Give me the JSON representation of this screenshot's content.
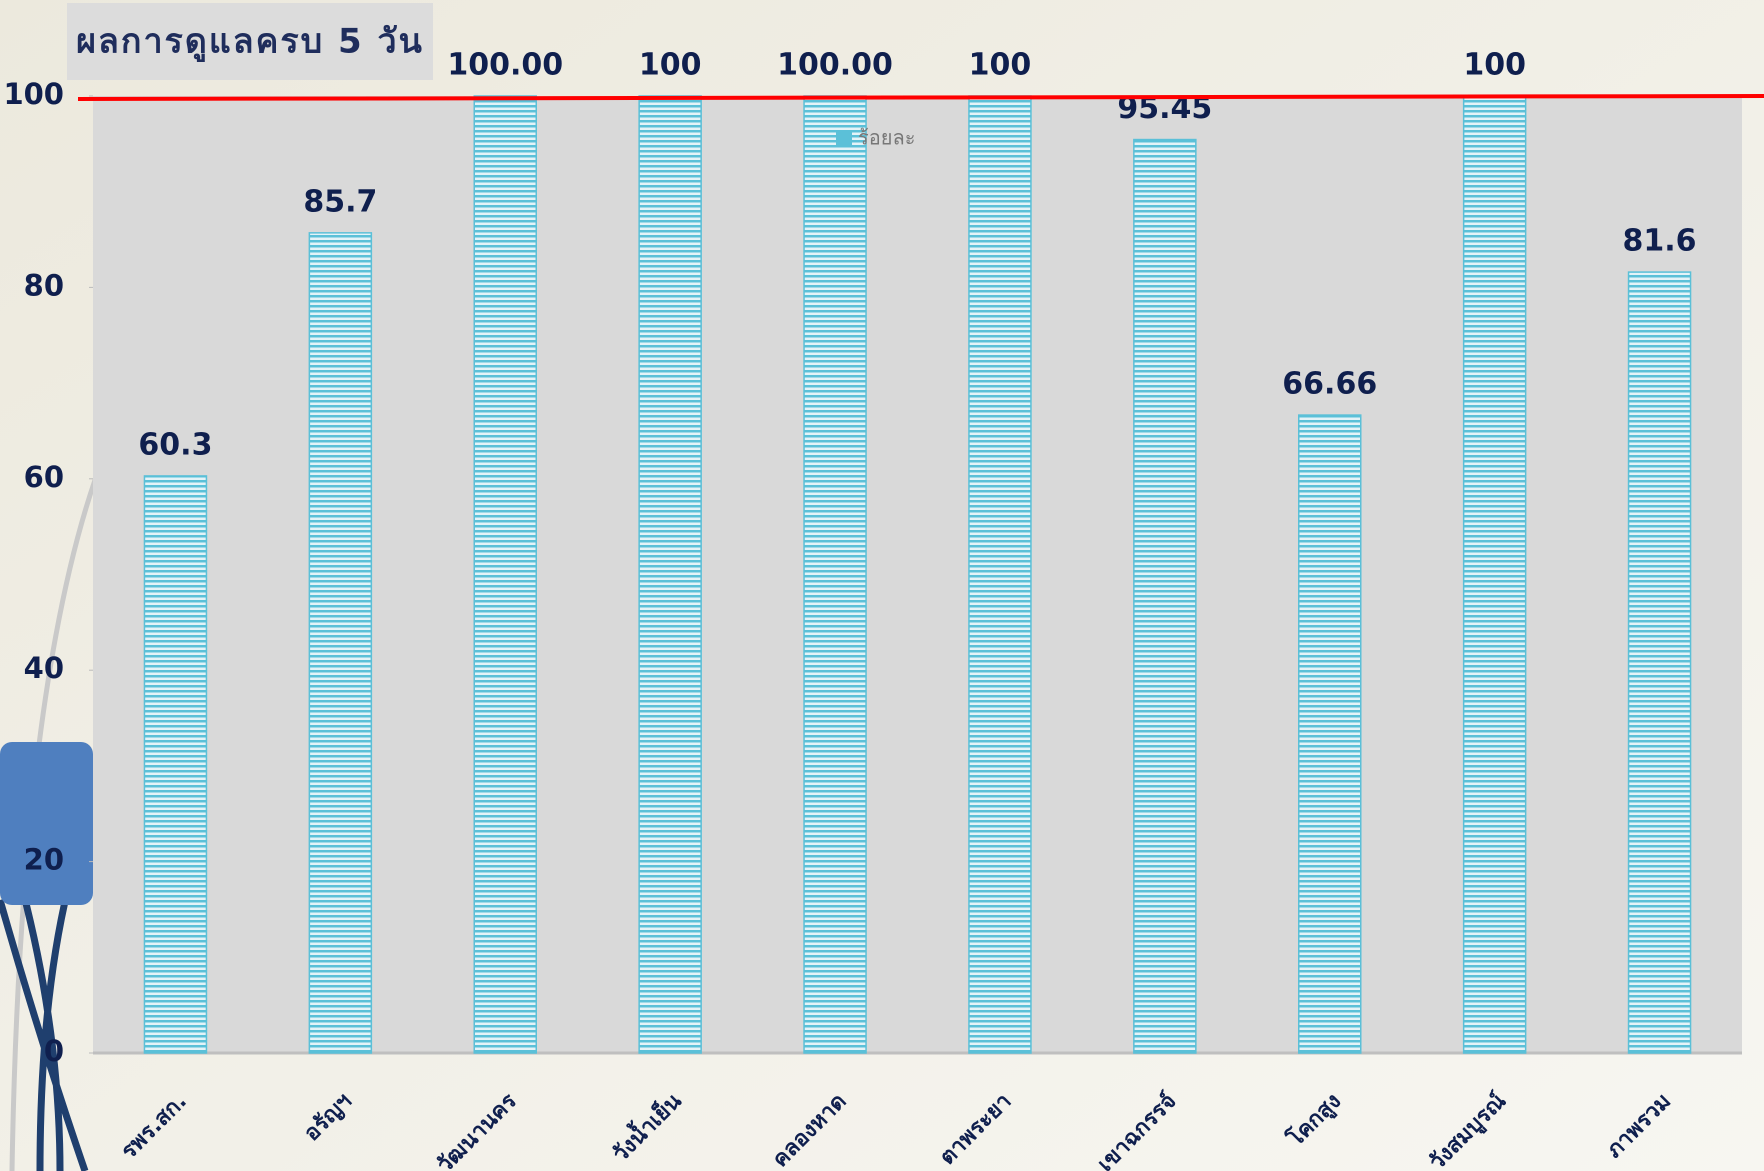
{
  "chart_data": {
    "type": "bar",
    "title": "ผลการดูแลครบ 5 วัน",
    "categories": [
      "รพร.สก.",
      "อรัญฯ",
      "วัฒนานคร",
      "วังน้ำเย็น",
      "คลองหาด",
      "ตาพระยา",
      "เขาฉกรรจ์",
      "โคกสูง",
      "วังสมบูรณ์",
      "ภาพรวม"
    ],
    "series": [
      {
        "name": "ร้อยละ",
        "color": "#5bc0d8",
        "values": [
          60.3,
          85.7,
          100,
          100,
          100,
          100,
          95.45,
          66.66,
          100,
          81.6
        ],
        "value_labels": [
          "60.3",
          "85.7",
          "100.00",
          "100",
          "100.00",
          "100",
          "95.45",
          "66.66",
          "100",
          "81.6"
        ]
      }
    ],
    "ylim": [
      0,
      100
    ],
    "yticks": [
      0,
      20,
      40,
      60,
      80,
      100
    ],
    "reference_line": {
      "value": 100,
      "color": "#ff0000"
    }
  }
}
